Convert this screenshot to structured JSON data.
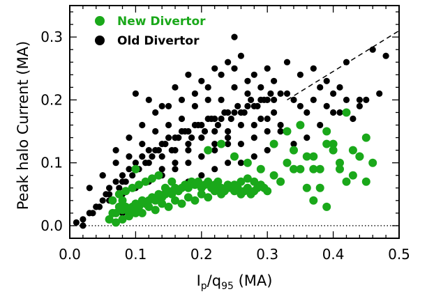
{
  "chart_data": {
    "type": "scatter",
    "xlabel": {
      "main": "I",
      "sub1": "p",
      "slash": "/q",
      "sub2": "95",
      "unit": " (MA)"
    },
    "ylabel": "Peak halo Current (MA)",
    "xlim": [
      0.0,
      0.5
    ],
    "ylim": [
      -0.02,
      0.35
    ],
    "x_ticks": [
      0.0,
      0.1,
      0.2,
      0.3,
      0.4,
      0.5
    ],
    "x_tick_labels": [
      "0.0",
      "0.1",
      "0.2",
      "0.3",
      "0.4",
      "0.5"
    ],
    "y_ticks": [
      0.0,
      0.1,
      0.2,
      0.3
    ],
    "y_tick_labels": [
      "0.0",
      "0.1",
      "0.2",
      "0.3"
    ],
    "grid": false,
    "legend_position": "top-left",
    "reference_lines": [
      {
        "style": "dashed",
        "x": [
          0.33,
          0.5
        ],
        "y": [
          0.2,
          0.31
        ]
      },
      {
        "style": "dotted",
        "x": [
          0.0,
          0.5
        ],
        "y": [
          0.0,
          0.0
        ]
      }
    ],
    "series": [
      {
        "name": "Old Divertor",
        "color": "#000000",
        "x": [
          0.02,
          0.03,
          0.04,
          0.05,
          0.06,
          0.07,
          0.08,
          0.09,
          0.1,
          0.11,
          0.12,
          0.13,
          0.14,
          0.15,
          0.16,
          0.17,
          0.18,
          0.19,
          0.2,
          0.21,
          0.22,
          0.23,
          0.24,
          0.25,
          0.26,
          0.27,
          0.28,
          0.29,
          0.3,
          0.31,
          0.32,
          0.33,
          0.34,
          0.35,
          0.36,
          0.37,
          0.38,
          0.39,
          0.4,
          0.41,
          0.42,
          0.44,
          0.46,
          0.48,
          0.05,
          0.07,
          0.09,
          0.11,
          0.13,
          0.15,
          0.17,
          0.19,
          0.21,
          0.23,
          0.25,
          0.27,
          0.29,
          0.31,
          0.06,
          0.08,
          0.1,
          0.12,
          0.14,
          0.16,
          0.18,
          0.2,
          0.22,
          0.24,
          0.26,
          0.28,
          0.3,
          0.04,
          0.06,
          0.08,
          0.1,
          0.12,
          0.14,
          0.16,
          0.18,
          0.2,
          0.22,
          0.24,
          0.26,
          0.28,
          0.3,
          0.32,
          0.03,
          0.05,
          0.07,
          0.09,
          0.11,
          0.13,
          0.15,
          0.17,
          0.19,
          0.21,
          0.23,
          0.25,
          0.08,
          0.1,
          0.12,
          0.14,
          0.16,
          0.18,
          0.2,
          0.22,
          0.24,
          0.26,
          0.28,
          0.3,
          0.34,
          0.36,
          0.38,
          0.4,
          0.43,
          0.45,
          0.47,
          0.02,
          0.01,
          0.035,
          0.045,
          0.055,
          0.065,
          0.075,
          0.085,
          0.095,
          0.105,
          0.115,
          0.125,
          0.135,
          0.145,
          0.155,
          0.165,
          0.175,
          0.185,
          0.195,
          0.205,
          0.215,
          0.225,
          0.235,
          0.245,
          0.255,
          0.265,
          0.275,
          0.285,
          0.295,
          0.305,
          0.1,
          0.12,
          0.14,
          0.16,
          0.18,
          0.2,
          0.22,
          0.24,
          0.26,
          0.28,
          0.18,
          0.2,
          0.22,
          0.24,
          0.14,
          0.16,
          0.27,
          0.3,
          0.25,
          0.33,
          0.35,
          0.37,
          0.39,
          0.41,
          0.42,
          0.44,
          0.31,
          0.29,
          0.32
        ],
        "y": [
          0.01,
          0.02,
          0.03,
          0.04,
          0.06,
          0.07,
          0.08,
          0.09,
          0.1,
          0.11,
          0.12,
          0.12,
          0.13,
          0.14,
          0.14,
          0.15,
          0.15,
          0.16,
          0.16,
          0.17,
          0.17,
          0.17,
          0.18,
          0.18,
          0.18,
          0.19,
          0.19,
          0.2,
          0.2,
          0.2,
          0.21,
          0.21,
          0.2,
          0.19,
          0.18,
          0.2,
          0.22,
          0.19,
          0.21,
          0.18,
          0.2,
          0.19,
          0.28,
          0.27,
          0.08,
          0.1,
          0.11,
          0.13,
          0.15,
          0.16,
          0.17,
          0.19,
          0.2,
          0.2,
          0.22,
          0.21,
          0.22,
          0.23,
          0.05,
          0.07,
          0.09,
          0.1,
          0.11,
          0.12,
          0.13,
          0.14,
          0.15,
          0.15,
          0.16,
          0.16,
          0.17,
          0.03,
          0.04,
          0.05,
          0.06,
          0.07,
          0.08,
          0.09,
          0.1,
          0.11,
          0.12,
          0.13,
          0.13,
          0.14,
          0.15,
          0.16,
          0.06,
          0.08,
          0.12,
          0.14,
          0.16,
          0.18,
          0.19,
          0.2,
          0.21,
          0.22,
          0.24,
          0.25,
          0.02,
          0.03,
          0.04,
          0.05,
          0.06,
          0.07,
          0.08,
          0.09,
          0.1,
          0.1,
          0.11,
          0.12,
          0.13,
          0.14,
          0.16,
          0.18,
          0.17,
          0.2,
          0.21,
          0.0,
          0.005,
          0.02,
          0.03,
          0.05,
          0.04,
          0.06,
          0.07,
          0.08,
          0.09,
          0.1,
          0.11,
          0.12,
          0.13,
          0.12,
          0.14,
          0.15,
          0.14,
          0.16,
          0.15,
          0.17,
          0.16,
          0.18,
          0.17,
          0.19,
          0.18,
          0.2,
          0.19,
          0.2,
          0.21,
          0.21,
          0.2,
          0.19,
          0.22,
          0.24,
          0.23,
          0.25,
          0.26,
          0.27,
          0.24,
          0.12,
          0.11,
          0.13,
          0.14,
          0.09,
          0.1,
          0.23,
          0.25,
          0.3,
          0.26,
          0.24,
          0.25,
          0.23,
          0.22,
          0.26,
          0.2,
          0.18,
          0.17,
          0.15
        ]
      },
      {
        "name": "New Divertor",
        "color": "#1aa81a",
        "x": [
          0.06,
          0.065,
          0.07,
          0.075,
          0.08,
          0.085,
          0.09,
          0.095,
          0.1,
          0.105,
          0.11,
          0.115,
          0.12,
          0.125,
          0.13,
          0.135,
          0.14,
          0.145,
          0.15,
          0.155,
          0.16,
          0.165,
          0.17,
          0.175,
          0.18,
          0.185,
          0.19,
          0.195,
          0.2,
          0.205,
          0.21,
          0.215,
          0.22,
          0.225,
          0.23,
          0.235,
          0.24,
          0.245,
          0.25,
          0.255,
          0.26,
          0.265,
          0.27,
          0.275,
          0.28,
          0.285,
          0.29,
          0.295,
          0.3,
          0.07,
          0.08,
          0.09,
          0.1,
          0.11,
          0.12,
          0.13,
          0.14,
          0.15,
          0.16,
          0.17,
          0.18,
          0.19,
          0.2,
          0.21,
          0.22,
          0.23,
          0.24,
          0.25,
          0.26,
          0.27,
          0.065,
          0.075,
          0.085,
          0.095,
          0.105,
          0.115,
          0.125,
          0.135,
          0.145,
          0.155,
          0.31,
          0.32,
          0.33,
          0.34,
          0.35,
          0.36,
          0.37,
          0.38,
          0.39,
          0.4,
          0.41,
          0.42,
          0.43,
          0.44,
          0.45,
          0.46,
          0.31,
          0.33,
          0.35,
          0.37,
          0.38,
          0.4,
          0.42,
          0.44,
          0.45,
          0.36,
          0.39,
          0.41,
          0.43,
          0.39,
          0.34,
          0.37,
          0.21,
          0.23,
          0.25,
          0.29,
          0.27,
          0.08,
          0.1,
          0.28
        ],
        "y": [
          0.01,
          0.02,
          0.02,
          0.03,
          0.025,
          0.03,
          0.02,
          0.03,
          0.035,
          0.03,
          0.04,
          0.035,
          0.04,
          0.045,
          0.04,
          0.05,
          0.045,
          0.05,
          0.055,
          0.05,
          0.06,
          0.055,
          0.06,
          0.065,
          0.06,
          0.07,
          0.065,
          0.07,
          0.06,
          0.065,
          0.07,
          0.06,
          0.065,
          0.07,
          0.06,
          0.055,
          0.065,
          0.06,
          0.055,
          0.06,
          0.05,
          0.055,
          0.06,
          0.05,
          0.055,
          0.06,
          0.065,
          0.06,
          0.055,
          0.005,
          0.01,
          0.015,
          0.02,
          0.02,
          0.03,
          0.025,
          0.035,
          0.03,
          0.04,
          0.035,
          0.045,
          0.04,
          0.05,
          0.045,
          0.055,
          0.05,
          0.06,
          0.065,
          0.07,
          0.075,
          0.04,
          0.05,
          0.055,
          0.06,
          0.065,
          0.07,
          0.075,
          0.08,
          0.06,
          0.07,
          0.08,
          0.07,
          0.1,
          0.12,
          0.09,
          0.06,
          0.11,
          0.09,
          0.13,
          0.12,
          0.1,
          0.18,
          0.08,
          0.11,
          0.14,
          0.1,
          0.13,
          0.15,
          0.16,
          0.09,
          0.06,
          0.13,
          0.07,
          0.11,
          0.07,
          0.11,
          0.15,
          0.09,
          0.12,
          0.03,
          0.09,
          0.04,
          0.12,
          0.13,
          0.11,
          0.09,
          0.1,
          0.04,
          0.09,
          0.07
        ]
      }
    ]
  },
  "legend": [
    {
      "label": "New Divertor",
      "color": "#1aa81a"
    },
    {
      "label": "Old Divertor",
      "color": "#000000"
    }
  ]
}
